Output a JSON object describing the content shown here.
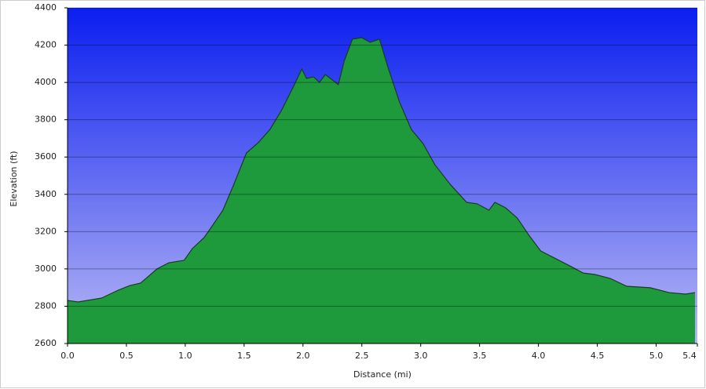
{
  "chart_data": {
    "type": "area",
    "x_label": "Distance    (mi)",
    "y_label": "Elevation (ft)",
    "x": [
      0,
      0.09,
      0.29,
      0.43,
      0.53,
      0.62,
      0.69,
      0.76,
      0.86,
      0.99,
      1.06,
      1.16,
      1.22,
      1.32,
      1.41,
      1.52,
      1.62,
      1.72,
      1.82,
      1.92,
      1.99,
      2.03,
      2.09,
      2.14,
      2.19,
      2.25,
      2.3,
      2.35,
      2.42,
      2.5,
      2.57,
      2.65,
      2.72,
      2.82,
      2.92,
      3.02,
      3.12,
      3.25,
      3.39,
      3.48,
      3.58,
      3.63,
      3.72,
      3.82,
      3.92,
      4.02,
      4.15,
      4.28,
      4.38,
      4.48,
      4.61,
      4.75,
      4.95,
      5.11,
      5.25,
      5.33
    ],
    "series": [
      {
        "name": "Elevation",
        "color": "#22a844",
        "values": [
          2831,
          2823,
          2844,
          2886,
          2911,
          2924,
          2962,
          3000,
          3033,
          3046,
          3109,
          3168,
          3222,
          3315,
          3449,
          3622,
          3677,
          3748,
          3853,
          3979,
          4072,
          4021,
          4030,
          4000,
          4042,
          4013,
          3988,
          4114,
          4232,
          4240,
          4215,
          4232,
          4085,
          3895,
          3748,
          3672,
          3559,
          3454,
          3357,
          3349,
          3315,
          3357,
          3328,
          3273,
          3180,
          3096,
          3054,
          3012,
          2978,
          2970,
          2949,
          2907,
          2899,
          2873,
          2865,
          2873
        ]
      }
    ],
    "xlim": [
      0,
      5.35
    ],
    "xticks": [
      {
        "value": 0,
        "label": "0.0"
      },
      {
        "value": 0.5,
        "label": "0.5"
      },
      {
        "value": 1,
        "label": "1.0"
      },
      {
        "value": 1.5,
        "label": "1.5"
      },
      {
        "value": 2,
        "label": "2.0"
      },
      {
        "value": 2.5,
        "label": "2.5"
      },
      {
        "value": 3,
        "label": "3.0"
      },
      {
        "value": 3.5,
        "label": "3.5"
      },
      {
        "value": 4,
        "label": "4.0"
      },
      {
        "value": 4.5,
        "label": "4.5"
      },
      {
        "value": 5,
        "label": "5.0"
      },
      {
        "value": 5.35,
        "label": "5.4"
      }
    ],
    "ylim": [
      2600,
      4400
    ],
    "yticks": [
      2600,
      2800,
      3000,
      3200,
      3400,
      3600,
      3800,
      4000,
      4200,
      4400
    ],
    "grid": true
  }
}
